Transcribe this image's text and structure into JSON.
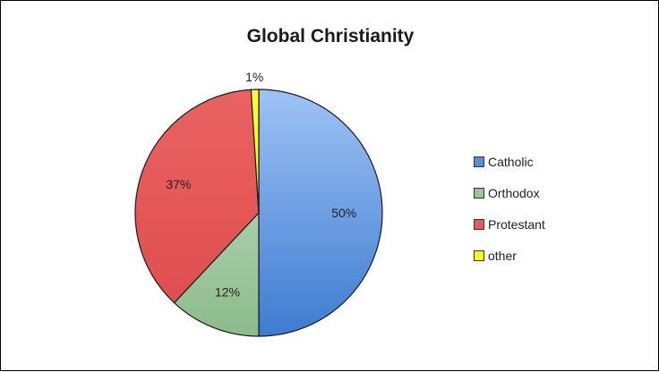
{
  "chart_data": {
    "type": "pie",
    "title": "Global Christianity",
    "categories": [
      "Catholic",
      "Orthodox",
      "Protestant",
      "other"
    ],
    "values": [
      50,
      12,
      37,
      1
    ],
    "data_labels": [
      "50%",
      "12%",
      "37%",
      "1%"
    ],
    "colors": [
      "#5b8ed6",
      "#9cc49c",
      "#e65a5a",
      "#ffff00"
    ],
    "start": "12 o'clock",
    "direction": "clockwise",
    "legend_position": "right"
  }
}
